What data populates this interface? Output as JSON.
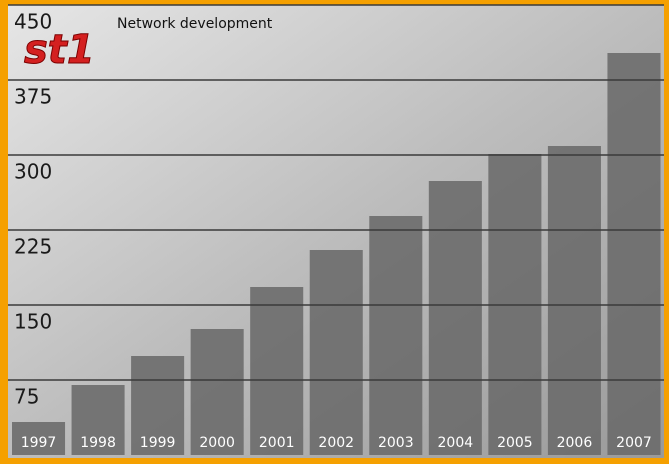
{
  "chart_data": {
    "type": "bar",
    "title": "Network development",
    "logo": "st1",
    "categories": [
      "1997",
      "1998",
      "1999",
      "2000",
      "2001",
      "2002",
      "2003",
      "2004",
      "2005",
      "2006",
      "2007"
    ],
    "values": [
      33,
      70,
      99,
      126,
      168,
      205,
      239,
      274,
      301,
      309,
      402
    ],
    "color": "#6a6a6a",
    "ylim": [
      0,
      450
    ],
    "yticks": [
      75,
      150,
      225,
      300,
      375,
      450
    ],
    "grid": true
  }
}
